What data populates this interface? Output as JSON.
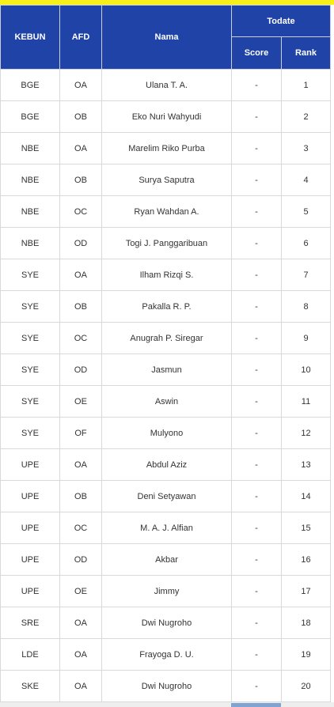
{
  "header": {
    "kebun": "KEBUN",
    "afd": "AFD",
    "nama": "Nama",
    "todate": "Todate",
    "score": "Score",
    "rank": "Rank"
  },
  "rows": [
    {
      "kebun": "BGE",
      "afd": "OA",
      "nama": "Ulana T. A.",
      "score": "-",
      "rank": "1"
    },
    {
      "kebun": "BGE",
      "afd": "OB",
      "nama": "Eko Nuri Wahyudi",
      "score": "-",
      "rank": "2"
    },
    {
      "kebun": "NBE",
      "afd": "OA",
      "nama": "Marelim Riko Purba",
      "score": "-",
      "rank": "3"
    },
    {
      "kebun": "NBE",
      "afd": "OB",
      "nama": "Surya Saputra",
      "score": "-",
      "rank": "4"
    },
    {
      "kebun": "NBE",
      "afd": "OC",
      "nama": "Ryan Wahdan A.",
      "score": "-",
      "rank": "5"
    },
    {
      "kebun": "NBE",
      "afd": "OD",
      "nama": "Togi J. Panggaribuan",
      "score": "-",
      "rank": "6"
    },
    {
      "kebun": "SYE",
      "afd": "OA",
      "nama": "Ilham Rizqi S.",
      "score": "-",
      "rank": "7"
    },
    {
      "kebun": "SYE",
      "afd": "OB",
      "nama": "Pakalla R. P.",
      "score": "-",
      "rank": "8"
    },
    {
      "kebun": "SYE",
      "afd": "OC",
      "nama": "Anugrah P. Siregar",
      "score": "-",
      "rank": "9"
    },
    {
      "kebun": "SYE",
      "afd": "OD",
      "nama": "Jasmun",
      "score": "-",
      "rank": "10"
    },
    {
      "kebun": "SYE",
      "afd": "OE",
      "nama": "Aswin",
      "score": "-",
      "rank": "11"
    },
    {
      "kebun": "SYE",
      "afd": "OF",
      "nama": "Mulyono",
      "score": "-",
      "rank": "12"
    },
    {
      "kebun": "UPE",
      "afd": "OA",
      "nama": "Abdul Aziz",
      "score": "-",
      "rank": "13"
    },
    {
      "kebun": "UPE",
      "afd": "OB",
      "nama": "Deni Setyawan",
      "score": "-",
      "rank": "14"
    },
    {
      "kebun": "UPE",
      "afd": "OC",
      "nama": "M. A. J. Alfian",
      "score": "-",
      "rank": "15"
    },
    {
      "kebun": "UPE",
      "afd": "OD",
      "nama": "Akbar",
      "score": "-",
      "rank": "16"
    },
    {
      "kebun": "UPE",
      "afd": "OE",
      "nama": "Jimmy",
      "score": "-",
      "rank": "17"
    },
    {
      "kebun": "SRE",
      "afd": "OA",
      "nama": "Dwi Nugroho",
      "score": "-",
      "rank": "18"
    },
    {
      "kebun": "LDE",
      "afd": "OA",
      "nama": "Frayoga D. U.",
      "score": "-",
      "rank": "19"
    },
    {
      "kebun": "SKE",
      "afd": "OA",
      "nama": "Dwi Nugroho",
      "score": "-",
      "rank": "20"
    }
  ]
}
